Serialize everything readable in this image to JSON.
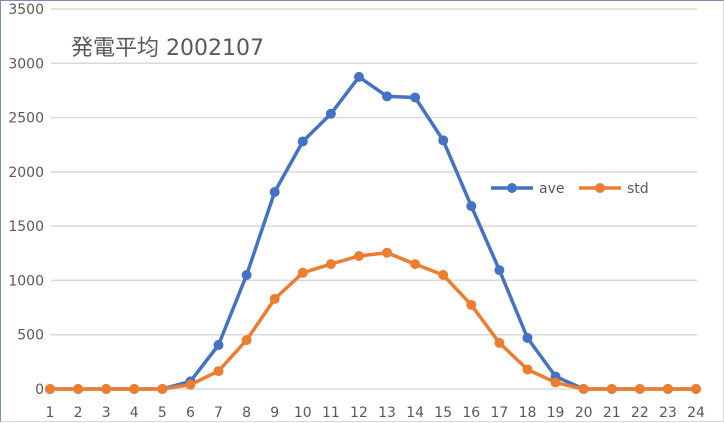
{
  "chart_data": {
    "type": "line",
    "title": "発電平均 2002107",
    "xlabel": "",
    "ylabel": "",
    "x": [
      1,
      2,
      3,
      4,
      5,
      6,
      7,
      8,
      9,
      10,
      11,
      12,
      13,
      14,
      15,
      16,
      17,
      18,
      19,
      20,
      21,
      22,
      23,
      24
    ],
    "ylim": [
      0,
      3500
    ],
    "yticks": [
      0,
      500,
      1000,
      1500,
      2000,
      2500,
      3000,
      3500
    ],
    "grid": true,
    "legend_position": "right-middle",
    "series": [
      {
        "name": "ave",
        "color": "#4472c4",
        "values": [
          0,
          0,
          0,
          0,
          0,
          70,
          405,
          1050,
          1815,
          2280,
          2535,
          2875,
          2695,
          2685,
          2290,
          1685,
          1095,
          470,
          115,
          0,
          0,
          0,
          0,
          0
        ]
      },
      {
        "name": "std",
        "color": "#ed7d31",
        "values": [
          0,
          0,
          0,
          0,
          0,
          40,
          165,
          450,
          830,
          1070,
          1150,
          1225,
          1255,
          1150,
          1050,
          775,
          425,
          180,
          60,
          0,
          0,
          0,
          0,
          0
        ]
      }
    ]
  },
  "colors": {
    "grid": "#d9d9d9",
    "text": "#595959",
    "border": "#7b8fb5"
  }
}
